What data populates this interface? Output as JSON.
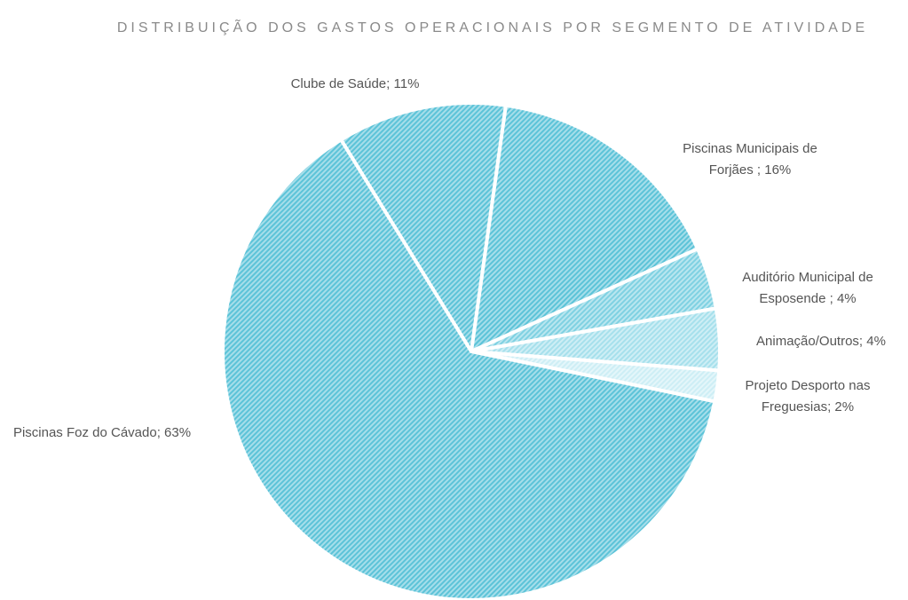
{
  "chart_data": {
    "type": "pie",
    "title": "DISTRIBUIÇÃO DOS GASTOS OPERACIONAIS POR SEGMENTO DE ATIVIDADE",
    "categories": [
      "Clube de Saúde",
      "Piscinas Municipais de Forjães ",
      "Auditório Municipal de Esposende ",
      "Animação/Outros",
      "Projeto Desporto nas Freguesias",
      "Piscinas Foz do Cávado"
    ],
    "values": [
      11,
      16,
      4,
      4,
      2,
      63
    ],
    "value_labels": [
      "11%",
      "16%",
      "4%",
      "4%",
      "2%",
      "63%"
    ],
    "label_separator": "; ",
    "colors": [
      "#5cc3d8",
      "#5cc3d8",
      "#7fd1e2",
      "#a6e0ec",
      "#cdeef5",
      "#5cc3d8"
    ]
  }
}
